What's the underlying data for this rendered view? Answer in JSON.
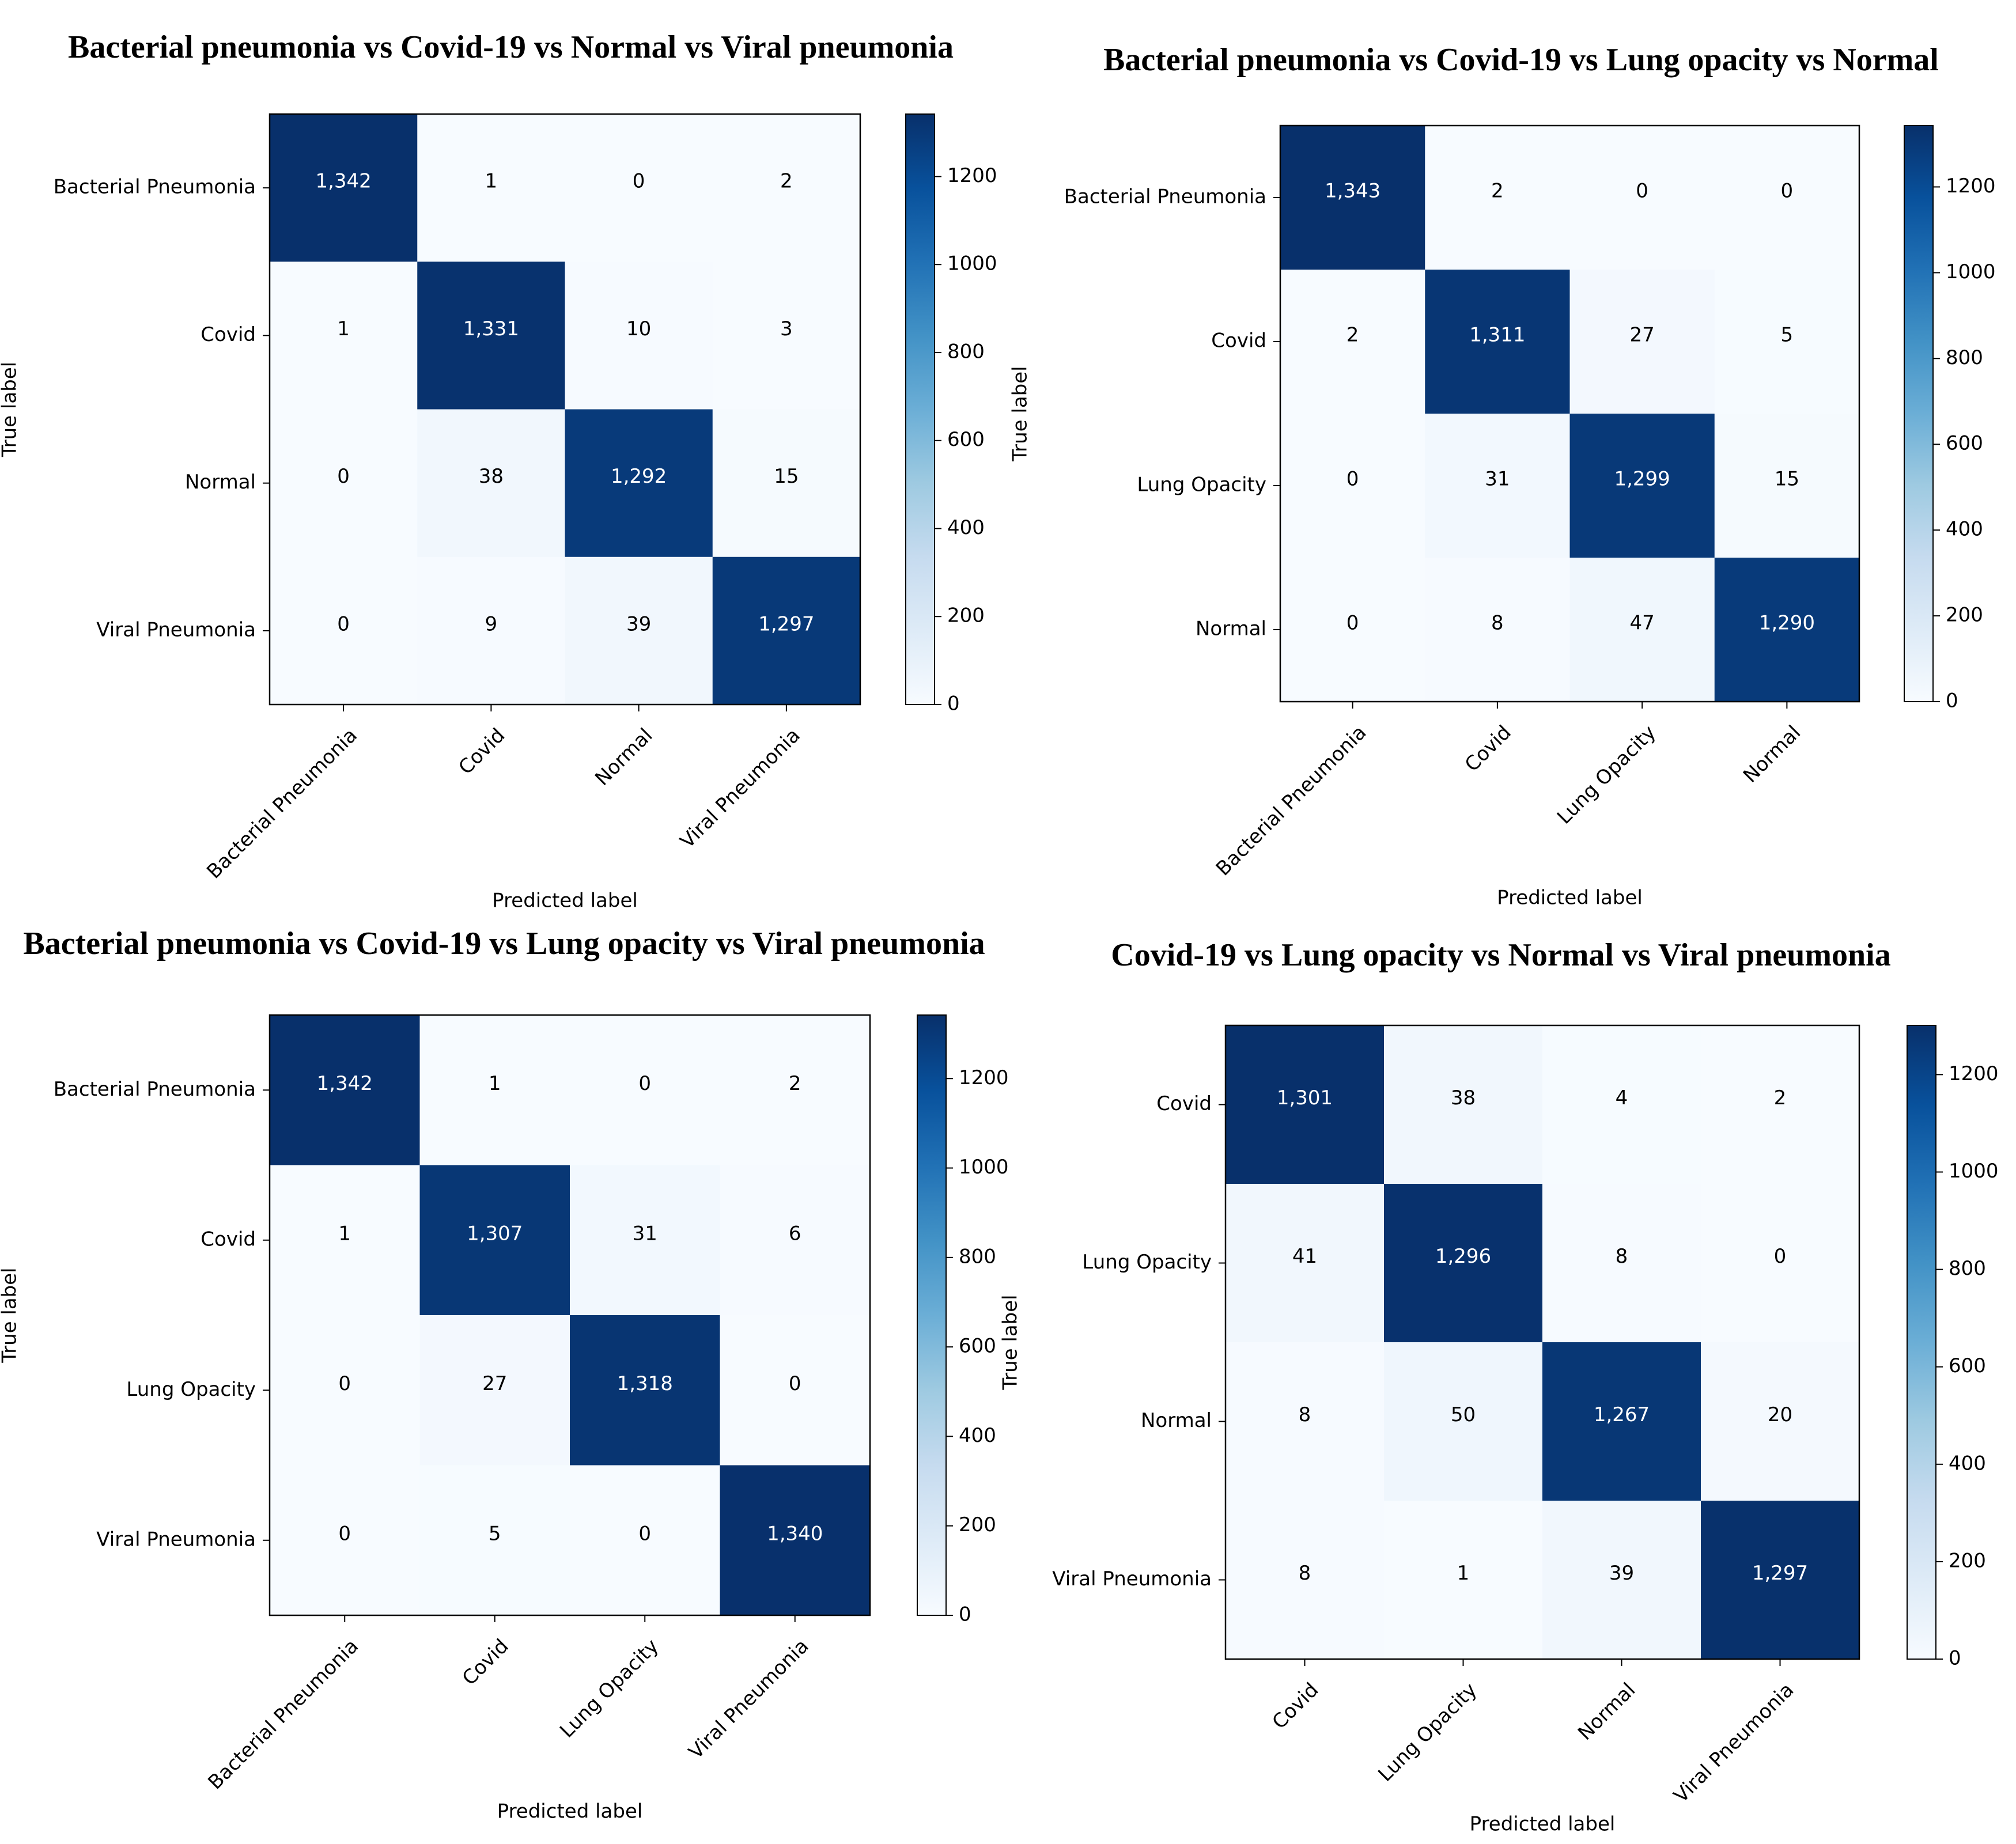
{
  "colors": {
    "cmap_low": "#f7fbff",
    "cmap_mid": "#6baed6",
    "cmap_high": "#08306b",
    "text_light": "#ffffff",
    "text_dark": "#000000"
  },
  "chart_data": [
    {
      "type": "heatmap",
      "title": "Bacterial pneumonia vs Covid-19 vs Normal vs Viral pneumonia",
      "xlabel": "Predicted label",
      "ylabel": "True label",
      "categories": [
        "Bacterial Pneumonia",
        "Covid",
        "Normal",
        "Viral Pneumonia"
      ],
      "matrix": [
        [
          1342,
          1,
          0,
          2
        ],
        [
          1,
          1331,
          10,
          3
        ],
        [
          0,
          38,
          1292,
          15
        ],
        [
          0,
          9,
          39,
          1297
        ]
      ],
      "cell_labels": [
        [
          "1,342",
          "1",
          "0",
          "2"
        ],
        [
          "1",
          "1,331",
          "10",
          "3"
        ],
        [
          "0",
          "38",
          "1,292",
          "15"
        ],
        [
          "0",
          "9",
          "39",
          "1,297"
        ]
      ],
      "colorbar": {
        "min": 0,
        "max": 1342,
        "ticks": [
          0,
          200,
          400,
          600,
          800,
          1000,
          1200
        ]
      }
    },
    {
      "type": "heatmap",
      "title": "Bacterial pneumonia vs Covid-19 vs Lung opacity vs Normal",
      "xlabel": "Predicted label",
      "ylabel": "True label",
      "categories": [
        "Bacterial Pneumonia",
        "Covid",
        "Lung Opacity",
        "Normal"
      ],
      "matrix": [
        [
          1343,
          2,
          0,
          0
        ],
        [
          2,
          1311,
          27,
          5
        ],
        [
          0,
          31,
          1299,
          15
        ],
        [
          0,
          8,
          47,
          1290
        ]
      ],
      "cell_labels": [
        [
          "1,343",
          "2",
          "0",
          "0"
        ],
        [
          "2",
          "1,311",
          "27",
          "5"
        ],
        [
          "0",
          "31",
          "1,299",
          "15"
        ],
        [
          "0",
          "8",
          "47",
          "1,290"
        ]
      ],
      "colorbar": {
        "min": 0,
        "max": 1343,
        "ticks": [
          0,
          200,
          400,
          600,
          800,
          1000,
          1200
        ]
      }
    },
    {
      "type": "heatmap",
      "title": "Bacterial pneumonia vs Covid-19 vs Lung opacity vs Viral pneumonia",
      "xlabel": "Predicted label",
      "ylabel": "True label",
      "categories": [
        "Bacterial Pneumonia",
        "Covid",
        "Lung Opacity",
        "Viral Pneumonia"
      ],
      "matrix": [
        [
          1342,
          1,
          0,
          2
        ],
        [
          1,
          1307,
          31,
          6
        ],
        [
          0,
          27,
          1318,
          0
        ],
        [
          0,
          5,
          0,
          1340
        ]
      ],
      "cell_labels": [
        [
          "1,342",
          "1",
          "0",
          "2"
        ],
        [
          "1",
          "1,307",
          "31",
          "6"
        ],
        [
          "0",
          "27",
          "1,318",
          "0"
        ],
        [
          "0",
          "5",
          "0",
          "1,340"
        ]
      ],
      "colorbar": {
        "min": 0,
        "max": 1342,
        "ticks": [
          0,
          200,
          400,
          600,
          800,
          1000,
          1200
        ]
      }
    },
    {
      "type": "heatmap",
      "title": "Covid-19 vs Lung opacity vs Normal vs Viral pneumonia",
      "xlabel": "Predicted label",
      "ylabel": "True label",
      "categories": [
        "Covid",
        "Lung Opacity",
        "Normal",
        "Viral Pneumonia"
      ],
      "matrix": [
        [
          1301,
          38,
          4,
          2
        ],
        [
          41,
          1296,
          8,
          0
        ],
        [
          8,
          50,
          1267,
          20
        ],
        [
          8,
          1,
          39,
          1297
        ]
      ],
      "cell_labels": [
        [
          "1,301",
          "38",
          "4",
          "2"
        ],
        [
          "41",
          "1,296",
          "8",
          "0"
        ],
        [
          "8",
          "50",
          "1,267",
          "20"
        ],
        [
          "8",
          "1",
          "39",
          "1,297"
        ]
      ],
      "colorbar": {
        "min": 0,
        "max": 1301,
        "ticks": [
          0,
          200,
          400,
          600,
          800,
          1000,
          1200
        ]
      }
    }
  ]
}
